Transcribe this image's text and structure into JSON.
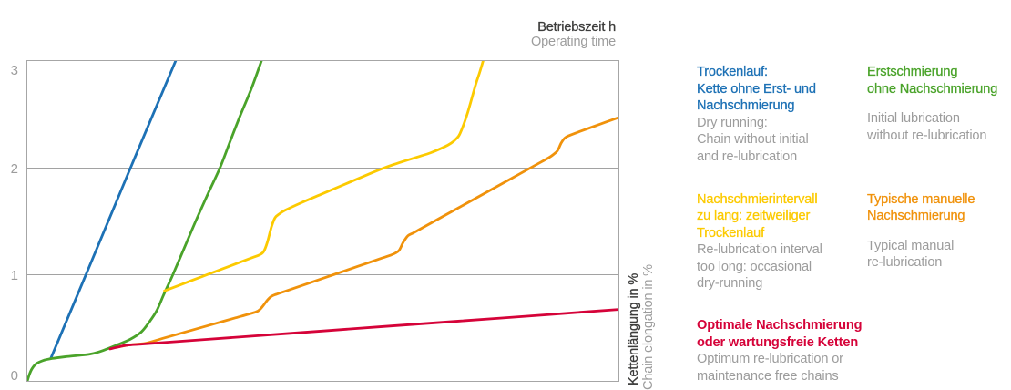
{
  "page": {
    "background": "#ffffff"
  },
  "colors": {
    "blue": "#1d71b5",
    "green": "#4aa32a",
    "yellow": "#fcca00",
    "orange": "#f0920b",
    "red": "#d50339",
    "gray_text": "#9c9c9c",
    "dark_text": "#3c3c3b",
    "grid": "#a2a2a2"
  },
  "chart_data": {
    "type": "line",
    "title": "",
    "xlabel": {
      "de": "Betriebszeit h",
      "en": "Operating time"
    },
    "ylabel": {
      "de": "Kettenlängung in %",
      "en": "Chain elongation in %"
    },
    "xlim": [
      0,
      100
    ],
    "ylim": [
      0,
      3
    ],
    "yticks": [
      0,
      1,
      2,
      3
    ],
    "xticks": [],
    "grid": "horizontal",
    "series": [
      {
        "id": "dry-running",
        "name_de": "Trockenlauf: Kette ohne Erst- und Nachschmierung",
        "name_en": "Dry running: Chain without initial and re-lubrication",
        "color": "#1d71b5",
        "points": [
          [
            4.0,
            0.215
          ],
          [
            11.0,
            1.14
          ],
          [
            18.0,
            2.07
          ],
          [
            25.08,
            3.0
          ]
        ]
      },
      {
        "id": "initial-lubrication-only",
        "name_de": "Erstschmierung ohne Nachschmierung",
        "name_en": "Initial lubrication without re-lubrication",
        "color": "#4aa32a",
        "points": [
          [
            0,
            0
          ],
          [
            0.38,
            0.065
          ],
          [
            0.8,
            0.115
          ],
          [
            1.5,
            0.16
          ],
          [
            2.6,
            0.19
          ],
          [
            4.2,
            0.21
          ],
          [
            6.5,
            0.227
          ],
          [
            8.5,
            0.238
          ],
          [
            10.5,
            0.25
          ],
          [
            12.0,
            0.27
          ],
          [
            13.5,
            0.3
          ],
          [
            15.3,
            0.34
          ],
          [
            17.4,
            0.39
          ],
          [
            19.3,
            0.46
          ],
          [
            20.6,
            0.55
          ],
          [
            21.9,
            0.66
          ],
          [
            23.0,
            0.8
          ],
          [
            24.0,
            0.92
          ],
          [
            24.65,
            1.0
          ],
          [
            26.5,
            1.24
          ],
          [
            28.5,
            1.5
          ],
          [
            30.6,
            1.76
          ],
          [
            32.6,
            2.0
          ],
          [
            34.4,
            2.26
          ],
          [
            36.1,
            2.5
          ],
          [
            37.9,
            2.74
          ],
          [
            39.6,
            3.0
          ]
        ]
      },
      {
        "id": "relubrication-interval-too-long",
        "name_de": "Nachschmierintervall zu lang: zeitweiliger Trockenlauf",
        "name_en": "Re-lubrication interval too long: occasional dry-running",
        "color": "#fcca00",
        "points": [
          [
            23.2,
            0.845
          ],
          [
            25.5,
            0.893
          ],
          [
            28.0,
            0.946
          ],
          [
            30.5,
            0.998
          ],
          [
            33.0,
            1.051
          ],
          [
            35.5,
            1.103
          ],
          [
            37.7,
            1.149
          ],
          [
            39.3,
            1.183
          ],
          [
            40.0,
            1.215
          ],
          [
            40.6,
            1.3
          ],
          [
            41.3,
            1.445
          ],
          [
            41.9,
            1.53
          ],
          [
            42.6,
            1.565
          ],
          [
            43.6,
            1.6
          ],
          [
            46.3,
            1.67
          ],
          [
            50.0,
            1.757
          ],
          [
            54.0,
            1.851
          ],
          [
            58.0,
            1.945
          ],
          [
            60.0,
            1.99
          ],
          [
            62.0,
            2.03
          ],
          [
            64.0,
            2.066
          ],
          [
            66.0,
            2.1
          ],
          [
            68.3,
            2.141
          ],
          [
            70.6,
            2.196
          ],
          [
            71.7,
            2.23
          ],
          [
            72.5,
            2.268
          ],
          [
            73.2,
            2.32
          ],
          [
            74.4,
            2.5
          ],
          [
            75.8,
            2.77
          ],
          [
            76.5,
            2.89
          ],
          [
            77.1,
            3.0
          ]
        ]
      },
      {
        "id": "typical-manual-relubrication",
        "name_de": "Typische manuelle Nachschmierung",
        "name_en": "Typical manual re-lubrication",
        "color": "#f0920b",
        "points": [
          [
            15.4,
            0.318
          ],
          [
            16.9,
            0.335
          ],
          [
            18.5,
            0.344
          ],
          [
            20.2,
            0.355
          ],
          [
            23.0,
            0.4
          ],
          [
            26.0,
            0.447
          ],
          [
            29.0,
            0.494
          ],
          [
            32.0,
            0.541
          ],
          [
            35.0,
            0.588
          ],
          [
            38.3,
            0.64
          ],
          [
            39.2,
            0.663
          ],
          [
            39.9,
            0.705
          ],
          [
            40.6,
            0.757
          ],
          [
            41.3,
            0.793
          ],
          [
            42.1,
            0.812
          ],
          [
            44.0,
            0.848
          ],
          [
            48.0,
            0.924
          ],
          [
            52.0,
            1.0
          ],
          [
            56.0,
            1.076
          ],
          [
            60.0,
            1.152
          ],
          [
            61.4,
            1.178
          ],
          [
            62.2,
            1.197
          ],
          [
            62.9,
            1.225
          ],
          [
            63.6,
            1.3
          ],
          [
            64.4,
            1.362
          ],
          [
            65.3,
            1.388
          ],
          [
            66.5,
            1.425
          ],
          [
            70.0,
            1.533
          ],
          [
            74.0,
            1.656
          ],
          [
            78.0,
            1.779
          ],
          [
            82.0,
            1.902
          ],
          [
            86.0,
            2.025
          ],
          [
            88.2,
            2.093
          ],
          [
            89.0,
            2.124
          ],
          [
            89.7,
            2.16
          ],
          [
            90.3,
            2.23
          ],
          [
            90.9,
            2.277
          ],
          [
            91.7,
            2.302
          ],
          [
            93.5,
            2.34
          ],
          [
            96.5,
            2.4
          ],
          [
            100.0,
            2.47
          ]
        ]
      },
      {
        "id": "optimum-relubrication",
        "name_de": "Optimale Nachschmierung oder wartungsfreie Ketten",
        "name_en": "Optimum re-lubrication or maintenance free chains",
        "color": "#d50339",
        "points": [
          [
            14.0,
            0.3
          ],
          [
            15.4,
            0.318
          ],
          [
            16.9,
            0.335
          ],
          [
            20.2,
            0.348
          ],
          [
            30.0,
            0.388
          ],
          [
            45.0,
            0.448
          ],
          [
            60.0,
            0.509
          ],
          [
            80.0,
            0.589
          ],
          [
            100.0,
            0.67
          ]
        ]
      }
    ]
  },
  "legend": {
    "items": [
      {
        "id": "dry-running",
        "color": "#1d71b5",
        "title_lines": [
          "Trockenlauf:",
          "Kette ohne Erst- und",
          "Nachschmierung"
        ],
        "body_lines": [
          "Dry running:",
          "Chain without initial",
          "and re-lubrication"
        ]
      },
      {
        "id": "initial-lubrication-only",
        "color": "#4aa32a",
        "title_lines": [
          "Erstschmierung",
          "ohne Nachschmierung"
        ],
        "body_lines": [
          "Initial lubrication",
          "without re-lubrication"
        ]
      },
      {
        "id": "relubrication-interval-too-long",
        "color": "#fcca00",
        "title_lines": [
          "Nachschmierintervall",
          "zu lang: zeitweiliger",
          "Trockenlauf"
        ],
        "body_lines": [
          "Re-lubrication interval",
          "too long: occasional",
          "dry-running"
        ]
      },
      {
        "id": "typical-manual-relubrication",
        "color": "#f0920b",
        "title_lines": [
          "Typische manuelle",
          "Nachschmierung"
        ],
        "body_lines": [
          "Typical manual",
          "re-lubrication"
        ]
      },
      {
        "id": "optimum-relubrication",
        "color": "#d50339",
        "title_lines": [
          "Optimale Nachschmierung",
          "oder wartungsfreie Ketten"
        ],
        "body_lines": [
          "Optimum re-lubrication or",
          "maintenance free chains"
        ]
      }
    ]
  }
}
